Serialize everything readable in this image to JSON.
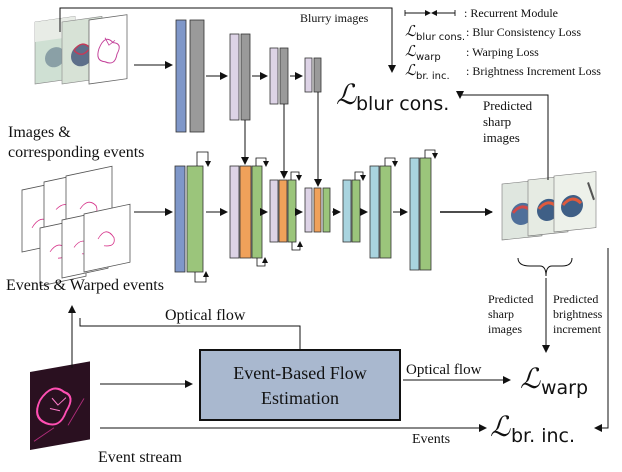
{
  "labels": {
    "blurry_images": "Blurry images",
    "images_events_line1": "Images &",
    "images_events_line2": "corresponding events",
    "events_warped": "Events & Warped events",
    "optical_flow_top": "Optical flow",
    "optical_flow_right": "Optical flow",
    "events": "Events",
    "event_stream": "Event stream",
    "flow_box_line1": "Event-Based Flow",
    "flow_box_line2": "Estimation",
    "pred_sharp_top_1": "Predicted",
    "pred_sharp_top_2": "sharp",
    "pred_sharp_top_3": "images",
    "pred_sharp_bot_1": "Predicted",
    "pred_sharp_bot_2": "sharp",
    "pred_sharp_bot_3": "images",
    "pred_bright_1": "Predicted",
    "pred_bright_2": "brightness",
    "pred_bright_3": "increment"
  },
  "loss_labels": {
    "blur_script": "ℒ",
    "blur_sub": "blur cons.",
    "warp_script": "ℒ",
    "warp_sub": "warp",
    "bri_script": "ℒ",
    "bri_sub": "br. inc."
  },
  "legend": {
    "recurrent": ": Recurrent Module",
    "blur_sym": "ℒ",
    "blur_sub": "blur cons.",
    "blur_desc": ": Blur Consistency Loss",
    "warp_sym": "ℒ",
    "warp_sub": "warp",
    "warp_desc": ": Warping Loss",
    "bri_sym": "ℒ",
    "bri_sub": "br. inc.",
    "bri_desc": ": Brightness Increment Loss"
  },
  "colors": {
    "blue_layer": "#7f97c9",
    "gray_layer": "#9a9a9a",
    "lavender_layer": "#ddd3e6",
    "green_layer": "#9bc57b",
    "orange_layer": "#f0a15a",
    "cyan_layer": "#a9d4df",
    "flow_box": "#a9b8cf",
    "event_magenta": "#d6338a"
  }
}
